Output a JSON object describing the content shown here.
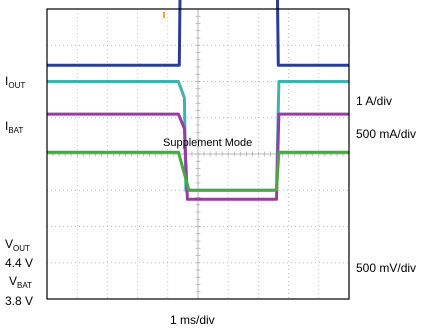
{
  "chart_data": {
    "type": "line",
    "grid": true,
    "x_divisions": 10,
    "y_divisions": 8,
    "xlabel": "1 ms/div",
    "annotation": "Supplement Mode",
    "colors": {
      "iout": "#2a3d96",
      "ibat": "#3fb2b0",
      "vout": "#9b3aa3",
      "vbat": "#4aa742",
      "grid": "#a8a8a8",
      "frame": "#000000"
    },
    "left_labels": [
      {
        "main": "I",
        "sub": "OUT"
      },
      {
        "main": "I",
        "sub": "BAT"
      },
      {
        "main": "V",
        "sub": "OUT"
      },
      {
        "main": "4.4 V",
        "sub": ""
      },
      {
        "main": "V",
        "sub": "BAT"
      },
      {
        "main": "3.8 V",
        "sub": ""
      }
    ],
    "right_labels": [
      "1 A/div",
      "500 mA/div",
      "500 mV/div"
    ],
    "series": [
      {
        "key": "iout",
        "points": [
          [
            0,
            2.45
          ],
          [
            4.38,
            2.45
          ],
          [
            4.43,
            6.45
          ],
          [
            7.6,
            6.45
          ],
          [
            7.66,
            2.45
          ],
          [
            10,
            2.45
          ]
        ]
      },
      {
        "key": "ibat",
        "points": [
          [
            0,
            2.0
          ],
          [
            4.35,
            2.0
          ],
          [
            4.55,
            1.55
          ],
          [
            4.6,
            -1.0
          ],
          [
            7.6,
            -1.0
          ],
          [
            7.68,
            2.0
          ],
          [
            10,
            2.0
          ]
        ]
      },
      {
        "key": "vout",
        "points": [
          [
            0,
            1.1
          ],
          [
            4.35,
            1.1
          ],
          [
            4.55,
            0.7
          ],
          [
            4.65,
            -1.25
          ],
          [
            7.6,
            -1.25
          ],
          [
            7.68,
            1.1
          ],
          [
            10,
            1.1
          ]
        ]
      },
      {
        "key": "vbat",
        "points": [
          [
            0,
            0.05
          ],
          [
            4.35,
            0.05
          ],
          [
            4.6,
            -0.7
          ],
          [
            4.7,
            -1.0
          ],
          [
            7.6,
            -1.0
          ],
          [
            7.68,
            0.05
          ],
          [
            10,
            0.05
          ]
        ]
      }
    ]
  }
}
